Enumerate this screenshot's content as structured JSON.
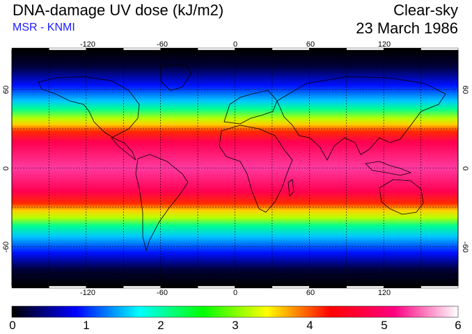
{
  "header": {
    "title": "DNA-damage UV dose (kJ/m2)",
    "source": "MSR - KNMI",
    "condition": "Clear-sky",
    "date": "23 March 1986"
  },
  "map": {
    "lon_ticks": [
      "-120",
      "-60",
      "0",
      "60",
      "120"
    ],
    "lat_ticks": [
      "60",
      "0",
      "-60"
    ],
    "lon_range": [
      -180,
      180
    ],
    "lat_range": [
      -90,
      90
    ],
    "grid_lon_step": 30,
    "grid_lat_step": 30
  },
  "colorbar": {
    "min": 0,
    "max": 6,
    "labels": [
      "0",
      "1",
      "2",
      "3",
      "4",
      "5",
      "6"
    ],
    "colors": [
      "#000000",
      "#0000ff",
      "#00ffff",
      "#00ff00",
      "#ffff00",
      "#ff0000",
      "#ff0080",
      "#ffffff"
    ]
  }
}
